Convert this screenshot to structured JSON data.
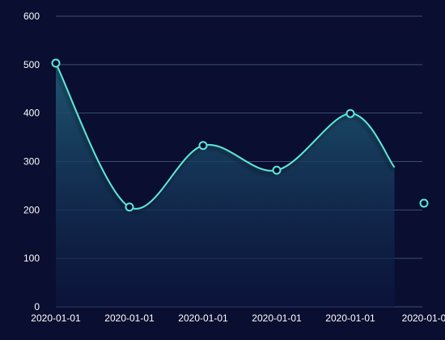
{
  "chart_data": {
    "type": "area",
    "title": "",
    "xlabel": "",
    "ylabel": "",
    "ylim": [
      0,
      600
    ],
    "yticks": [
      0,
      100,
      200,
      300,
      400,
      500,
      600
    ],
    "categories": [
      "2020-01-01",
      "2020-01-01",
      "2020-01-01",
      "2020-01-01",
      "2020-01-01",
      "2020-01-0"
    ],
    "x_positions": [
      0,
      1,
      2,
      3,
      4,
      5
    ],
    "series": [
      {
        "values": [
          503,
          206,
          333,
          282,
          399,
          214
        ],
        "smooth": true,
        "line_color": "#5de8d8",
        "marker_fill": "#0a0e30",
        "marker_stroke": "#5de8d8",
        "area_color_top": "#1f5a74",
        "area_color_bottom": "#0c1640"
      }
    ],
    "grid": true,
    "grid_color": "#3c4c74",
    "background": "#0a0e30"
  }
}
